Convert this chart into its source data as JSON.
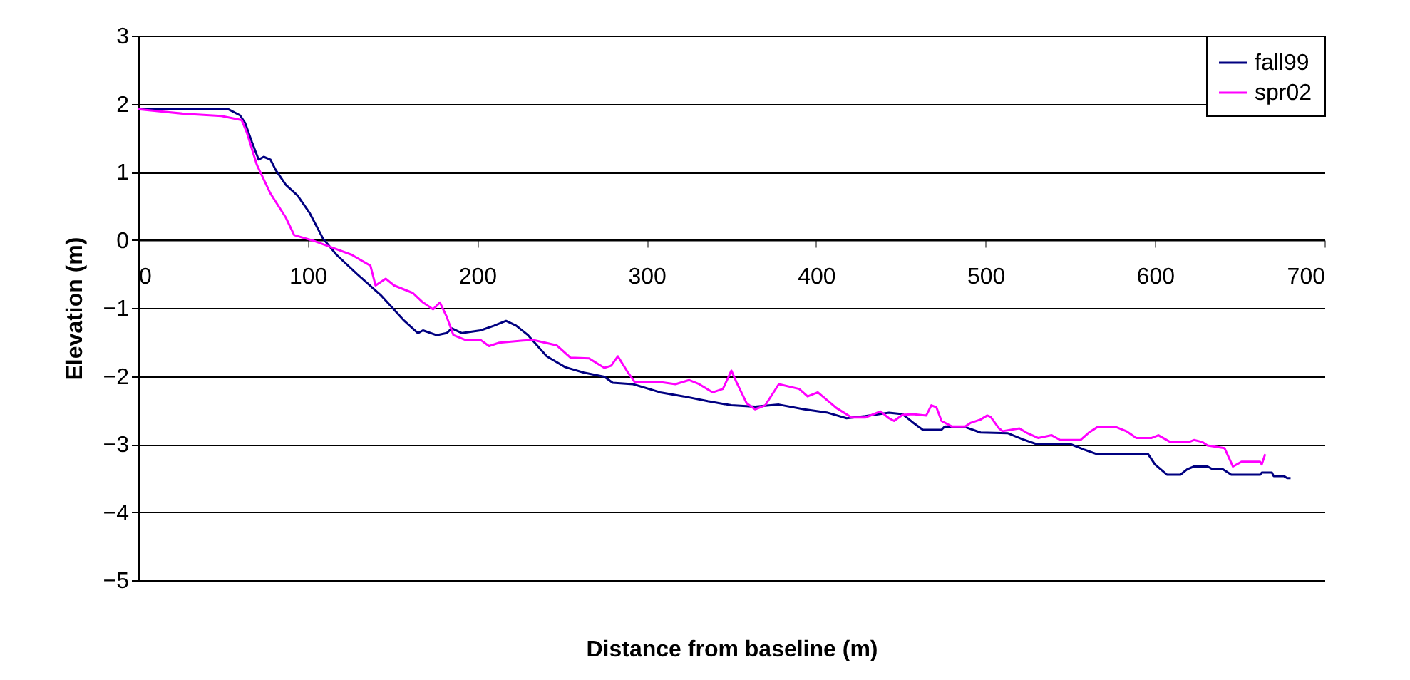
{
  "chart_data": {
    "type": "line",
    "xlabel": "Distance from baseline (m)",
    "ylabel": "Elevation (m)",
    "xlim": [
      0,
      700
    ],
    "xticks": [
      0,
      100,
      200,
      300,
      400,
      500,
      600,
      700
    ],
    "ylim": [
      -5,
      3
    ],
    "yticks": [
      -5,
      -4,
      -3,
      -2,
      -1,
      0,
      1,
      2,
      3
    ],
    "grid": "y",
    "legend": "top right",
    "series": [
      {
        "name": "fall99",
        "color": "#000080",
        "x": [
          0,
          53,
          60,
          63,
          67,
          71,
          74,
          78,
          81,
          87,
          94,
          101,
          109,
          117,
          129,
          143,
          157,
          165,
          168,
          176,
          182,
          185,
          191,
          202,
          210,
          217,
          223,
          230,
          241,
          252,
          263,
          275,
          280,
          292,
          308,
          322,
          336,
          350,
          364,
          378,
          393,
          407,
          418,
          429,
          443,
          451,
          457,
          463,
          474,
          476,
          488,
          497,
          513,
          522,
          530,
          550,
          558,
          566,
          596,
          600,
          607,
          615,
          619,
          623,
          631,
          634,
          640,
          645,
          662,
          663,
          669,
          670,
          676,
          678,
          680
        ],
        "values": [
          1.92,
          1.92,
          1.83,
          1.72,
          1.44,
          1.18,
          1.22,
          1.18,
          1.03,
          0.81,
          0.65,
          0.4,
          0.02,
          -0.22,
          -0.5,
          -0.81,
          -1.19,
          -1.37,
          -1.33,
          -1.4,
          -1.37,
          -1.3,
          -1.37,
          -1.33,
          -1.26,
          -1.19,
          -1.26,
          -1.4,
          -1.71,
          -1.87,
          -1.95,
          -2.01,
          -2.1,
          -2.12,
          -2.24,
          -2.3,
          -2.37,
          -2.43,
          -2.45,
          -2.42,
          -2.49,
          -2.54,
          -2.62,
          -2.59,
          -2.54,
          -2.56,
          -2.68,
          -2.79,
          -2.79,
          -2.74,
          -2.75,
          -2.83,
          -2.84,
          -2.93,
          -3.0,
          -3.0,
          -3.08,
          -3.15,
          -3.15,
          -3.3,
          -3.45,
          -3.45,
          -3.37,
          -3.33,
          -3.33,
          -3.37,
          -3.37,
          -3.45,
          -3.45,
          -3.42,
          -3.42,
          -3.47,
          -3.47,
          -3.5,
          -3.5
        ]
      },
      {
        "name": "spr02",
        "color": "#ff00ff",
        "x": [
          0,
          28,
          49,
          61,
          64,
          70,
          78,
          87,
          92,
          103,
          115,
          126,
          137,
          140,
          146,
          151,
          162,
          168,
          174,
          178,
          182,
          186,
          193,
          202,
          207,
          213,
          227,
          233,
          247,
          255,
          266,
          275,
          279,
          283,
          289,
          293,
          308,
          317,
          325,
          331,
          339,
          345,
          350,
          353,
          359,
          364,
          370,
          378,
          390,
          395,
          401,
          412,
          421,
          429,
          438,
          443,
          446,
          451,
          457,
          465,
          468,
          471,
          474,
          480,
          488,
          491,
          497,
          501,
          503,
          508,
          510,
          520,
          524,
          531,
          539,
          544,
          556,
          561,
          566,
          577,
          583,
          589,
          598,
          602,
          609,
          620,
          623,
          628,
          631,
          641,
          646,
          651,
          662,
          663,
          665
        ],
        "values": [
          1.92,
          1.85,
          1.82,
          1.76,
          1.58,
          1.1,
          0.68,
          0.33,
          0.07,
          -0.01,
          -0.12,
          -0.22,
          -0.38,
          -0.67,
          -0.57,
          -0.67,
          -0.78,
          -0.92,
          -1.02,
          -0.92,
          -1.13,
          -1.4,
          -1.47,
          -1.47,
          -1.56,
          -1.51,
          -1.48,
          -1.47,
          -1.55,
          -1.73,
          -1.74,
          -1.88,
          -1.85,
          -1.71,
          -1.95,
          -2.09,
          -2.09,
          -2.12,
          -2.06,
          -2.12,
          -2.24,
          -2.19,
          -1.92,
          -2.09,
          -2.4,
          -2.49,
          -2.43,
          -2.12,
          -2.19,
          -2.3,
          -2.24,
          -2.47,
          -2.61,
          -2.61,
          -2.52,
          -2.62,
          -2.66,
          -2.57,
          -2.56,
          -2.58,
          -2.43,
          -2.46,
          -2.66,
          -2.74,
          -2.74,
          -2.69,
          -2.64,
          -2.58,
          -2.6,
          -2.77,
          -2.81,
          -2.77,
          -2.83,
          -2.91,
          -2.87,
          -2.94,
          -2.94,
          -2.83,
          -2.75,
          -2.75,
          -2.81,
          -2.91,
          -2.91,
          -2.87,
          -2.97,
          -2.97,
          -2.94,
          -2.97,
          -3.02,
          -3.06,
          -3.33,
          -3.26,
          -3.26,
          -3.3,
          -3.15
        ]
      }
    ]
  }
}
